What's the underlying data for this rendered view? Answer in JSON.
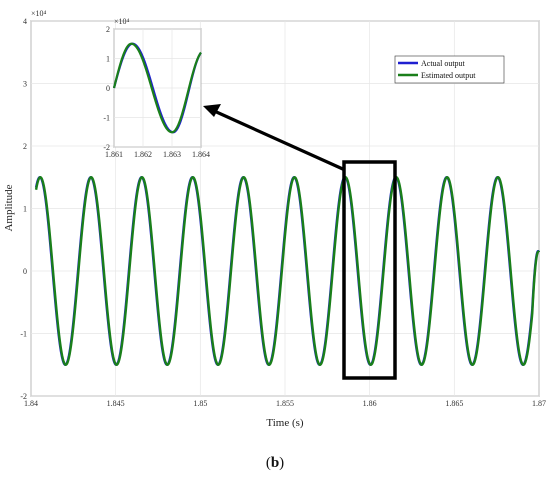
{
  "chart_data": [
    {
      "type": "line",
      "role": "main",
      "xlabel": "Time (s)",
      "ylabel": "Amplitude",
      "exponent_label": "×10⁴",
      "xlim": [
        1.84,
        1.87
      ],
      "ylim": [
        -2,
        4
      ],
      "x_ticks": [
        "1.84",
        "1.845",
        "1.85",
        "1.855",
        "1.86",
        "1.865",
        "1.87"
      ],
      "y_ticks": [
        "-2",
        "-1",
        "0",
        "1",
        "2",
        "3",
        "4"
      ],
      "grid": true,
      "legend": "upper-right",
      "signal": {
        "amplitude": 1.5,
        "frequency_hz": 333,
        "x_start": 1.8403,
        "x_end": 1.87,
        "y_start": 1.3,
        "y_end": 0.3
      },
      "series": [
        {
          "name": "Actual output",
          "color": "#1f1fd0"
        },
        {
          "name": "Estimated output",
          "color": "#1a7f1a"
        }
      ]
    },
    {
      "type": "line",
      "role": "inset",
      "exponent_label": "×10⁴",
      "xlim": [
        1.861,
        1.864
      ],
      "ylim": [
        -2,
        2
      ],
      "x_ticks": [
        "1.861",
        "1.862",
        "1.863",
        "1.864"
      ],
      "y_ticks": [
        "-2",
        "-1",
        "0",
        "1",
        "2"
      ],
      "grid": true,
      "signal": {
        "amplitude": 1.5,
        "x_start": 1.861,
        "x_end": 1.864,
        "peak_x": 1.8616,
        "trough_x": 1.863,
        "y_start": 0.0,
        "y_end": 1.2
      }
    }
  ],
  "caption": {
    "text": "b"
  }
}
